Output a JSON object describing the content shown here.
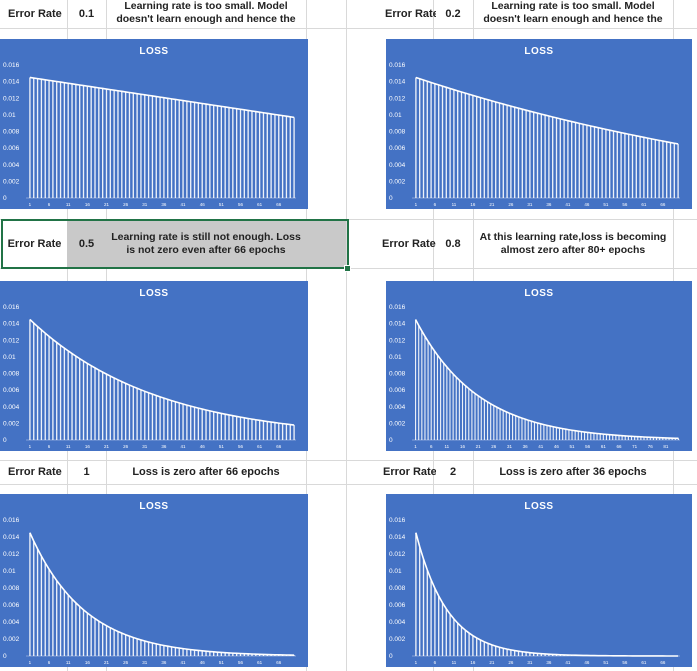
{
  "colors": {
    "chart_bg": "#4472c4",
    "series": "#ffffff",
    "cell_grey": "#c9c9c9",
    "selection": "#217346"
  },
  "rows": [
    {
      "left": {
        "label": "Error Rate",
        "value": "0.1",
        "note": "Learning rate is too small. Model doesn't learn enough and hence the"
      },
      "right": {
        "label": "Error Rate",
        "value": "0.2",
        "note": "Learning rate is too small. Model doesn't learn enough and hence the"
      }
    },
    {
      "left": {
        "label": "Error Rate",
        "value": "0.5",
        "note": "Learning rate is still not enough. Loss is not zero even after 66 epochs"
      },
      "right": {
        "label": "Error Rate",
        "value": "0.8",
        "note": "At this learning rate,loss is becoming almost zero after 80+ epochs"
      }
    },
    {
      "left": {
        "label": "Error Rate",
        "value": "1",
        "note": "Loss is zero after 66 epochs"
      },
      "right": {
        "label": "Error Rate",
        "value": "2",
        "note": "Loss is zero after 36 epochs"
      }
    }
  ],
  "chart_data": [
    {
      "type": "bar",
      "title": "LOSS",
      "ylim": [
        0,
        0.016
      ],
      "yticks": [
        "0",
        "0.002",
        "0.004",
        "0.006",
        "0.008",
        "0.01",
        "0.012",
        "0.014",
        "0.016"
      ],
      "x_first": 1,
      "x_last": 70,
      "x_step": 5,
      "y_start": 0.0145,
      "y_end": 0.0097,
      "decay": "linear",
      "grid": false
    },
    {
      "type": "bar",
      "title": "LOSS",
      "ylim": [
        0,
        0.016
      ],
      "yticks": [
        "0",
        "0.002",
        "0.004",
        "0.006",
        "0.008",
        "0.01",
        "0.012",
        "0.014",
        "0.016"
      ],
      "x_first": 1,
      "x_last": 70,
      "x_step": 5,
      "y_start": 0.0145,
      "y_end": 0.0065,
      "decay": 0.0085,
      "grid": false
    },
    {
      "type": "bar",
      "title": "LOSS",
      "ylim": [
        0,
        0.016
      ],
      "yticks": [
        "0",
        "0.002",
        "0.004",
        "0.006",
        "0.008",
        "0.01",
        "0.012",
        "0.014",
        "0.016"
      ],
      "x_first": 1,
      "x_last": 70,
      "x_step": 5,
      "y_start": 0.0145,
      "y_end": 0.0018,
      "decay": 0.0302,
      "grid": false
    },
    {
      "type": "bar",
      "title": "LOSS",
      "ylim": [
        0,
        0.016
      ],
      "yticks": [
        "0",
        "0.002",
        "0.004",
        "0.006",
        "0.008",
        "0.01",
        "0.012",
        "0.014",
        "0.016"
      ],
      "x_first": 1,
      "x_last": 85,
      "x_step": 5,
      "y_start": 0.0145,
      "y_end": 0.0002,
      "decay": 0.05,
      "grid": false
    },
    {
      "type": "bar",
      "title": "LOSS",
      "ylim": [
        0,
        0.016
      ],
      "yticks": [
        "0",
        "0.002",
        "0.004",
        "0.006",
        "0.008",
        "0.01",
        "0.012",
        "0.014",
        "0.016"
      ],
      "x_first": 1,
      "x_last": 70,
      "x_step": 5,
      "y_start": 0.0145,
      "y_end": 0.0001,
      "decay": 0.07,
      "grid": false
    },
    {
      "type": "bar",
      "title": "LOSS",
      "ylim": [
        0,
        0.016
      ],
      "yticks": [
        "0",
        "0.002",
        "0.004",
        "0.006",
        "0.008",
        "0.01",
        "0.012",
        "0.014",
        "0.016"
      ],
      "x_first": 1,
      "x_last": 70,
      "x_step": 5,
      "y_start": 0.0145,
      "y_end": 0.0,
      "decay": 0.12,
      "grid": false
    }
  ]
}
